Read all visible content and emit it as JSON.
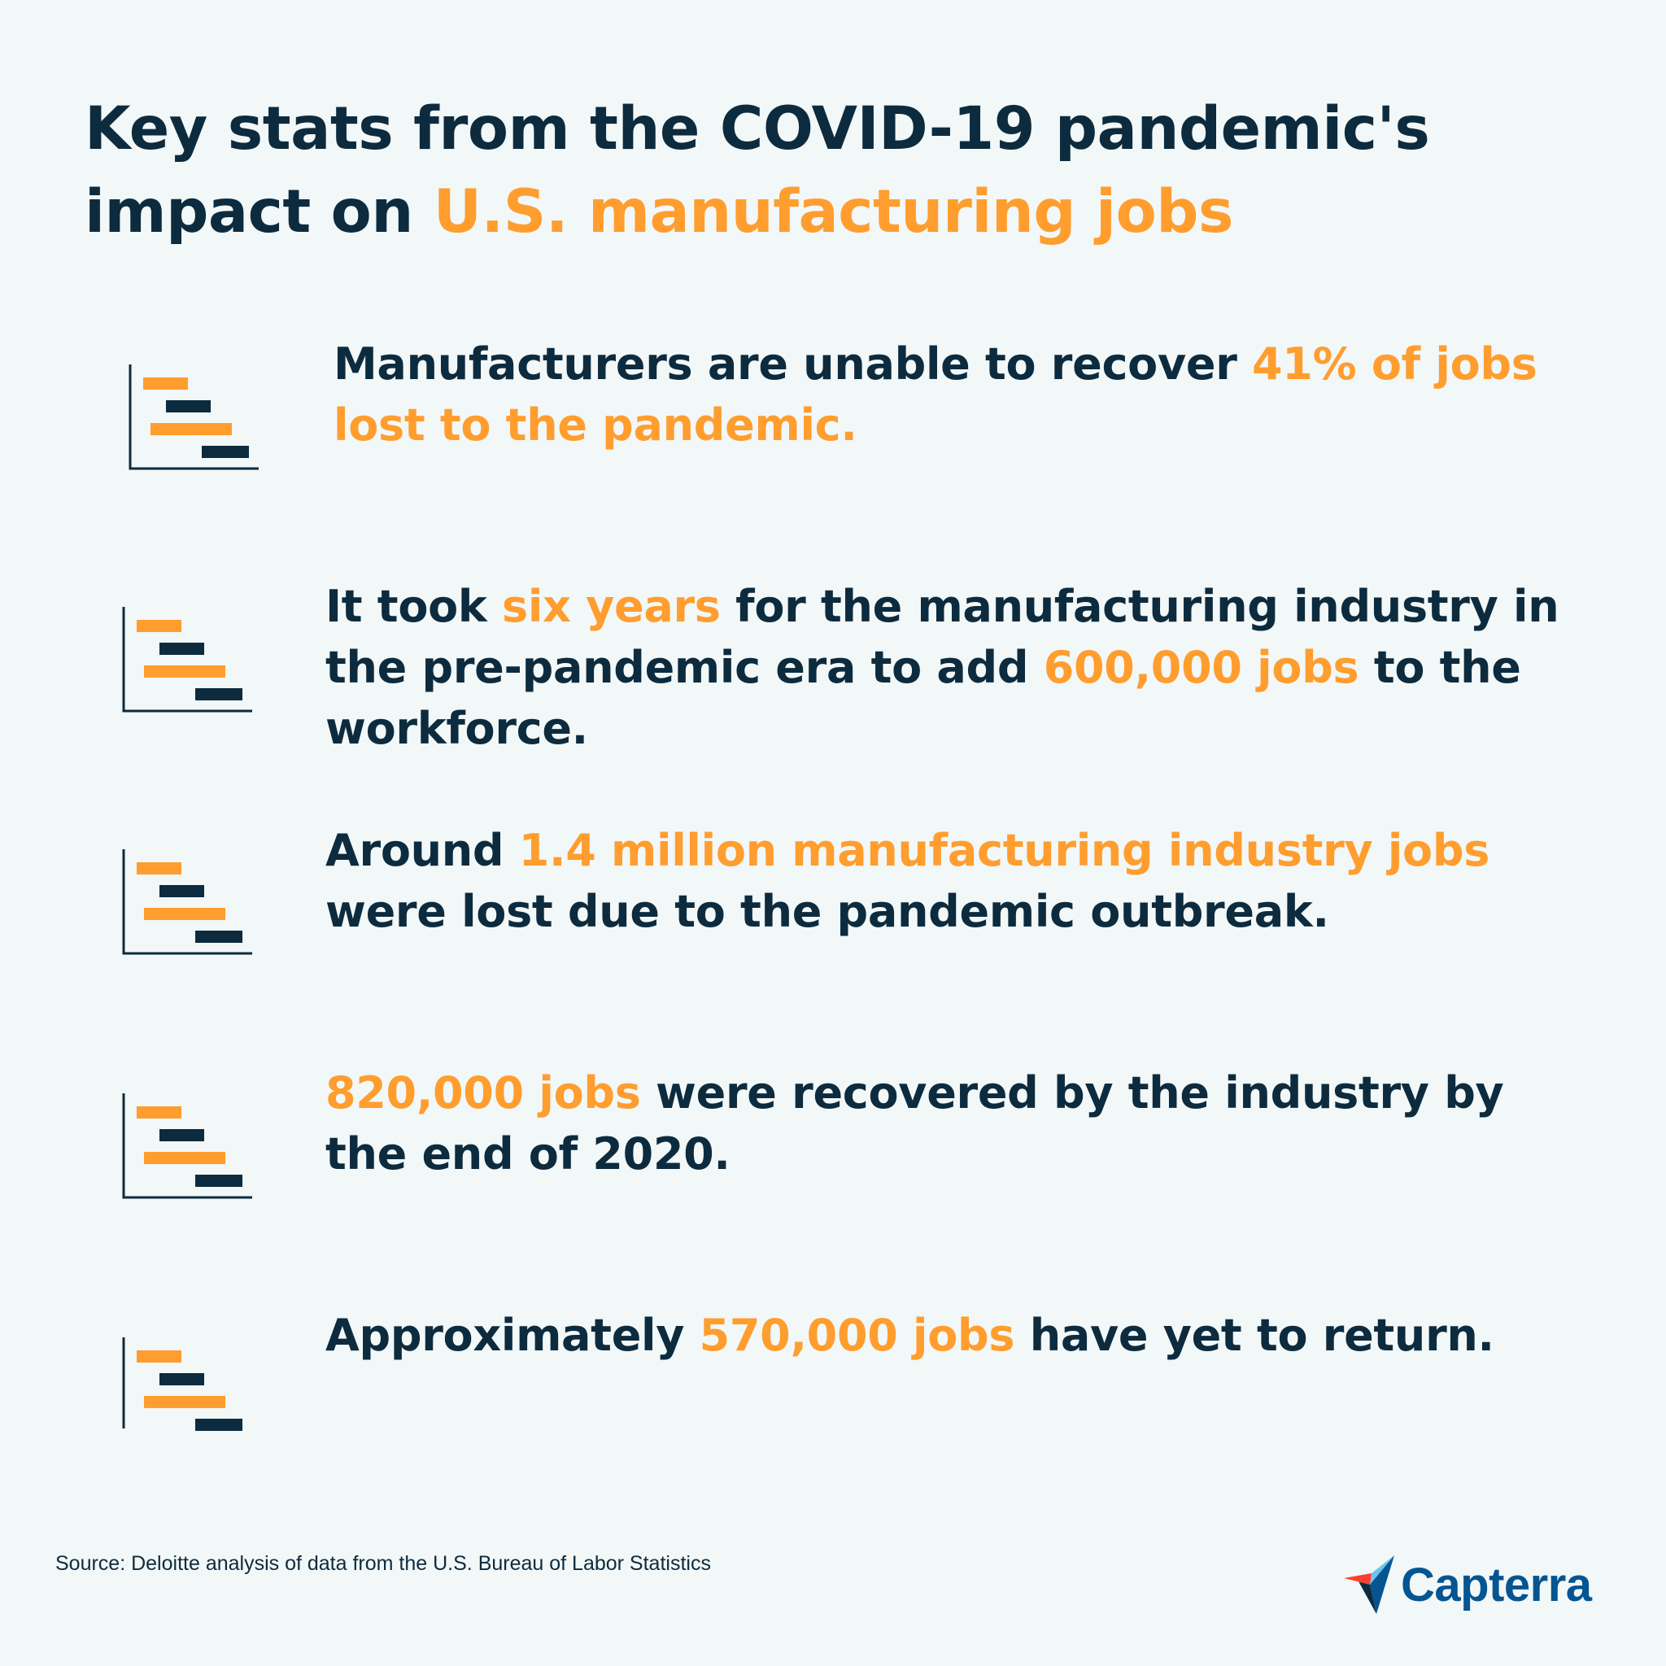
{
  "title": {
    "line1": "Key stats from the COVID-19 pandemic's",
    "line2_prefix": "impact on ",
    "line2_highlight": "U.S. manufacturing jobs"
  },
  "stats": [
    {
      "parts": [
        {
          "text": "Manufacturers are unable to recover ",
          "highlight": false
        },
        {
          "text": "41% of jobs lost to the pandemic.",
          "highlight": true
        }
      ]
    },
    {
      "parts": [
        {
          "text": "It took ",
          "highlight": false
        },
        {
          "text": "six years",
          "highlight": true
        },
        {
          "text": " for the manufacturing industry in the pre-pandemic era to add ",
          "highlight": false
        },
        {
          "text": "600,000 jobs",
          "highlight": true
        },
        {
          "text": " to the workforce.",
          "highlight": false
        }
      ]
    },
    {
      "parts": [
        {
          "text": "Around ",
          "highlight": false
        },
        {
          "text": "1.4 million manufacturing industry jobs",
          "highlight": true
        },
        {
          "text": " were lost due to the pandemic outbreak.",
          "highlight": false
        }
      ]
    },
    {
      "parts": [
        {
          "text": "820,000 jobs",
          "highlight": true
        },
        {
          "text": " were recovered by the industry by the end of 2020.",
          "highlight": false
        }
      ]
    },
    {
      "parts": [
        {
          "text": "Approximately ",
          "highlight": false
        },
        {
          "text": "570,000 jobs",
          "highlight": true
        },
        {
          "text": " have yet to return.",
          "highlight": false
        }
      ]
    }
  ],
  "source": "Source: Deloitte analysis of data from the U.S. Bureau of Labor Statistics",
  "logo": {
    "text": "Capterra"
  },
  "colors": {
    "background": "#f2f7f7",
    "navy": "#0d2b3e",
    "orange": "#ff9d2e",
    "logo_blue": "#045591"
  },
  "icons": {
    "stat_icon": "gantt-chart-icon",
    "logo_icon": "capterra-arrow-logo-icon"
  }
}
